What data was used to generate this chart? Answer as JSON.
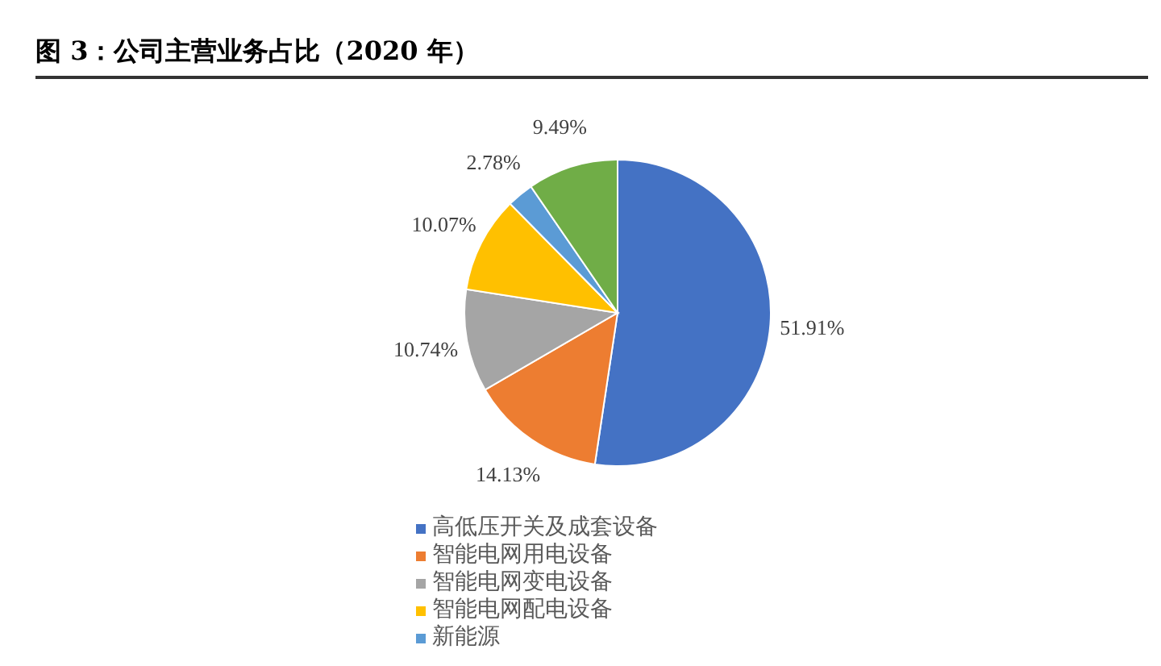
{
  "chart_data": {
    "type": "pie",
    "title": "图 3：公司主营业务占比（2020 年）",
    "categories": [
      "高低压开关及成套设备",
      "智能电网用电设备",
      "智能电网变电设备",
      "智能电网配电设备",
      "新能源",
      null
    ],
    "values": [
      51.91,
      14.13,
      10.74,
      10.07,
      2.78,
      9.49
    ],
    "colors": [
      "#4472c4",
      "#ed7d31",
      "#a5a5a5",
      "#ffc000",
      "#5b9bd5",
      "#70ad47"
    ],
    "value_labels": [
      "51.91%",
      "14.13%",
      "10.74%",
      "10.07%",
      "2.78%",
      "9.49%"
    ],
    "legend": "bottom"
  }
}
